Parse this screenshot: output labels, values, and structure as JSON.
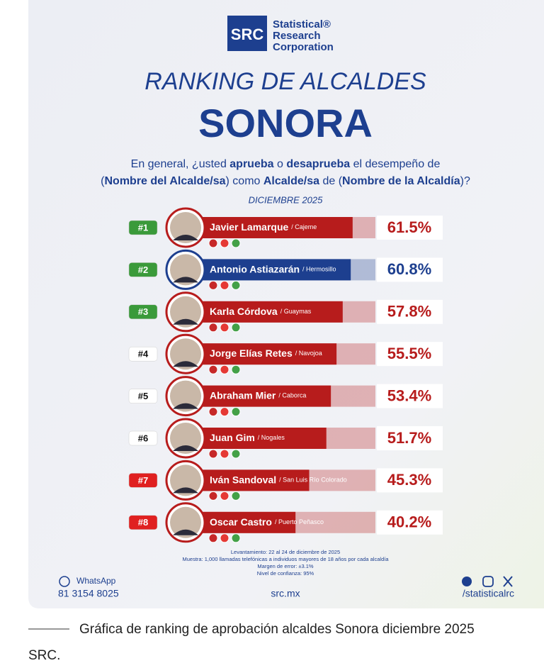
{
  "header": {
    "logo": "SRC",
    "company_lines": [
      "Statistical®",
      "Research",
      "Corporation"
    ],
    "title": "RANKING DE ALCALDES",
    "subtitle": "SONORA",
    "question_line1": [
      "En general, ¿usted ",
      "aprueba",
      " o ",
      "desaprueba",
      " el desempeño de"
    ],
    "question_line2": [
      "(",
      "Nombre del Alcalde/sa",
      ") como ",
      "Alcalde/sa",
      " de (",
      "Nombre de la Alcaldía",
      ")?"
    ],
    "date": "DICIEMBRE 2025"
  },
  "chart_data": {
    "type": "bar",
    "ranks": [
      "#1",
      "#2",
      "#3",
      "#4",
      "#5",
      "#6",
      "#7",
      "#8"
    ],
    "badge_colors": [
      "#3a9a3a",
      "#3a9a3a",
      "#3a9a3a",
      "#ffffff",
      "#ffffff",
      "#ffffff",
      "#e02020",
      "#e02020"
    ],
    "categories": [
      "Javier Lamarque",
      "Antonio Astiazarán",
      "Karla Córdova",
      "Jorge Elías Retes",
      "Abraham Mier",
      "Juan Gim",
      "Iván Sandoval",
      "Oscar Castro"
    ],
    "places": [
      "/ Cajeme",
      "/ Hermosillo",
      "/ Guaymas",
      "/ Navojoa",
      "/ Caborca",
      "/ Nogales",
      "/ San Luis Río Colorado",
      "/ Puerto Peñasco"
    ],
    "values": [
      61.5,
      60.8,
      57.8,
      55.5,
      53.4,
      51.7,
      45.3,
      40.2
    ],
    "value_labels": [
      "61.5%",
      "60.8%",
      "57.8%",
      "55.5%",
      "53.4%",
      "51.7%",
      "45.3%",
      "40.2%"
    ],
    "colors": [
      "#b71c1c",
      "#1d3f8f",
      "#b71c1c",
      "#b71c1c",
      "#b71c1c",
      "#b71c1c",
      "#b71c1c",
      "#b71c1c"
    ],
    "xlim": [
      0,
      70
    ]
  },
  "methodology": [
    "Levantamiento: 22 al 24 de diciembre de 2025",
    "Muestra: 1,000 llamadas telefónicas a individuos mayores de 18 años por cada alcaldía",
    "Margen de error: ±3.1%",
    "Nivel de confianza: 95%"
  ],
  "footer": {
    "whatsapp_label": "WhatsApp",
    "phone": "81 3154 8025",
    "website": "src.mx",
    "social": "/statisticalrc"
  },
  "caption": {
    "line1": "Gráfica de ranking de aprobación alcaldes Sonora diciembre 2025",
    "line2": "SRC."
  }
}
